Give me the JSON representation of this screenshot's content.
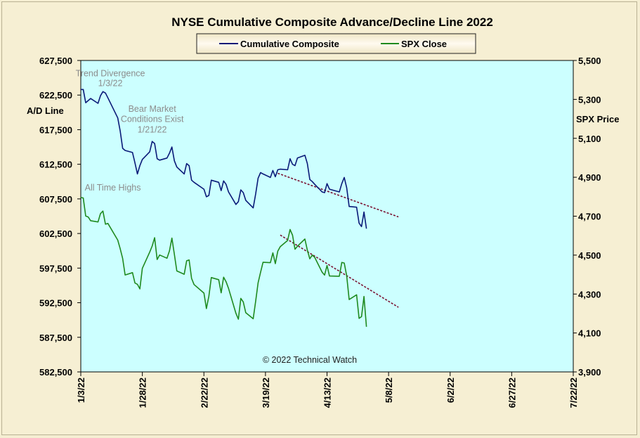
{
  "chart_data": {
    "type": "line",
    "title": "NYSE Cumulative  Composite Advance/Decline  Line  2022",
    "y_left_label": "A/D Line",
    "y_right_label": "SPX Price",
    "y_left_ticks": [
      "627,500",
      "622,500",
      "617,500",
      "612,500",
      "607,500",
      "602,500",
      "597,500",
      "592,500",
      "587,500",
      "582,500"
    ],
    "y_right_ticks": [
      "5,500",
      "5,300",
      "5,100",
      "4,900",
      "4,700",
      "4,500",
      "4,300",
      "4,100",
      "3,900"
    ],
    "x_ticks": [
      "1/3/22",
      "1/28/22",
      "2/22/22",
      "3/19/22",
      "4/13/22",
      "5/8/22",
      "6/2/22",
      "6/27/22",
      "7/22/22"
    ],
    "y_left_range": [
      582500,
      627500
    ],
    "y_right_range": [
      3900,
      5500
    ],
    "x_range_days": [
      0,
      200
    ],
    "grid": false,
    "legend_position": "top-center",
    "legend": [
      {
        "name": "Cumulative Composite",
        "color": "#0a1a78"
      },
      {
        "name": "SPX Close",
        "color": "#1f8a1f"
      }
    ],
    "series": [
      {
        "name": "Cumulative Composite",
        "axis": "left",
        "color": "#0a1a78",
        "points": [
          [
            "2022-01-03",
            623.3
          ],
          [
            "2022-01-04",
            623.3
          ],
          [
            "2022-01-05",
            621.4
          ],
          [
            "2022-01-06",
            621.7
          ],
          [
            "2022-01-07",
            622.0
          ],
          [
            "2022-01-10",
            621.3
          ],
          [
            "2022-01-11",
            622.4
          ],
          [
            "2022-01-12",
            623.0
          ],
          [
            "2022-01-13",
            622.8
          ],
          [
            "2022-01-14",
            622.1
          ],
          [
            "2022-01-18",
            619.2
          ],
          [
            "2022-01-19",
            617.3
          ],
          [
            "2022-01-20",
            614.8
          ],
          [
            "2022-01-21",
            614.5
          ],
          [
            "2022-01-24",
            614.2
          ],
          [
            "2022-01-25",
            612.7
          ],
          [
            "2022-01-26",
            611.1
          ],
          [
            "2022-01-27",
            612.3
          ],
          [
            "2022-01-28",
            613.2
          ],
          [
            "2022-01-31",
            614.3
          ],
          [
            "2022-02-01",
            615.8
          ],
          [
            "2022-02-02",
            615.5
          ],
          [
            "2022-02-03",
            613.3
          ],
          [
            "2022-02-04",
            613.1
          ],
          [
            "2022-02-07",
            613.4
          ],
          [
            "2022-02-08",
            614.1
          ],
          [
            "2022-02-09",
            615.0
          ],
          [
            "2022-02-10",
            613.0
          ],
          [
            "2022-02-11",
            612.1
          ],
          [
            "2022-02-14",
            611.1
          ],
          [
            "2022-02-15",
            612.6
          ],
          [
            "2022-02-16",
            612.3
          ],
          [
            "2022-02-17",
            610.2
          ],
          [
            "2022-02-18",
            609.9
          ],
          [
            "2022-02-22",
            608.9
          ],
          [
            "2022-02-23",
            607.8
          ],
          [
            "2022-02-24",
            608.0
          ],
          [
            "2022-02-25",
            610.2
          ],
          [
            "2022-02-28",
            609.9
          ],
          [
            "2022-03-01",
            608.7
          ],
          [
            "2022-03-02",
            610.1
          ],
          [
            "2022-03-03",
            609.6
          ],
          [
            "2022-03-04",
            608.5
          ],
          [
            "2022-03-07",
            606.7
          ],
          [
            "2022-03-08",
            607.1
          ],
          [
            "2022-03-09",
            608.8
          ],
          [
            "2022-03-10",
            608.4
          ],
          [
            "2022-03-11",
            607.3
          ],
          [
            "2022-03-14",
            606.2
          ],
          [
            "2022-03-15",
            608.2
          ],
          [
            "2022-03-16",
            610.5
          ],
          [
            "2022-03-17",
            611.3
          ],
          [
            "2022-03-18",
            611.1
          ],
          [
            "2022-03-21",
            610.6
          ],
          [
            "2022-03-22",
            611.6
          ],
          [
            "2022-03-23",
            610.7
          ],
          [
            "2022-03-24",
            611.7
          ],
          [
            "2022-03-25",
            611.8
          ],
          [
            "2022-03-28",
            611.7
          ],
          [
            "2022-03-29",
            613.3
          ],
          [
            "2022-03-30",
            612.5
          ],
          [
            "2022-03-31",
            612.3
          ],
          [
            "2022-04-01",
            613.4
          ],
          [
            "2022-04-04",
            613.8
          ],
          [
            "2022-04-05",
            612.6
          ],
          [
            "2022-04-06",
            610.3
          ],
          [
            "2022-04-07",
            610.0
          ],
          [
            "2022-04-08",
            609.6
          ],
          [
            "2022-04-11",
            608.5
          ],
          [
            "2022-04-12",
            608.4
          ],
          [
            "2022-04-13",
            609.7
          ],
          [
            "2022-04-14",
            608.9
          ],
          [
            "2022-04-18",
            608.5
          ],
          [
            "2022-04-19",
            609.7
          ],
          [
            "2022-04-20",
            610.6
          ],
          [
            "2022-04-21",
            609.1
          ],
          [
            "2022-04-22",
            606.4
          ],
          [
            "2022-04-25",
            606.3
          ],
          [
            "2022-04-26",
            604.0
          ],
          [
            "2022-04-27",
            603.5
          ],
          [
            "2022-04-28",
            605.6
          ],
          [
            "2022-04-29",
            603.2
          ]
        ]
      },
      {
        "name": "SPX Close",
        "axis": "right",
        "color": "#1f8a1f",
        "points": [
          [
            "2022-01-03",
            4796.6
          ],
          [
            "2022-01-04",
            4793.5
          ],
          [
            "2022-01-05",
            4700.6
          ],
          [
            "2022-01-06",
            4696.1
          ],
          [
            "2022-01-07",
            4677.0
          ],
          [
            "2022-01-10",
            4670.3
          ],
          [
            "2022-01-11",
            4713.1
          ],
          [
            "2022-01-12",
            4726.4
          ],
          [
            "2022-01-13",
            4659.0
          ],
          [
            "2022-01-14",
            4662.9
          ],
          [
            "2022-01-18",
            4577.1
          ],
          [
            "2022-01-19",
            4532.8
          ],
          [
            "2022-01-20",
            4482.7
          ],
          [
            "2022-01-21",
            4397.9
          ],
          [
            "2022-01-24",
            4410.1
          ],
          [
            "2022-01-25",
            4356.5
          ],
          [
            "2022-01-26",
            4349.9
          ],
          [
            "2022-01-27",
            4326.5
          ],
          [
            "2022-01-28",
            4431.9
          ],
          [
            "2022-01-31",
            4515.6
          ],
          [
            "2022-02-01",
            4546.5
          ],
          [
            "2022-02-02",
            4589.4
          ],
          [
            "2022-02-03",
            4477.4
          ],
          [
            "2022-02-04",
            4500.5
          ],
          [
            "2022-02-07",
            4483.9
          ],
          [
            "2022-02-08",
            4521.5
          ],
          [
            "2022-02-09",
            4587.2
          ],
          [
            "2022-02-10",
            4504.1
          ],
          [
            "2022-02-11",
            4418.6
          ],
          [
            "2022-02-14",
            4401.7
          ],
          [
            "2022-02-15",
            4471.1
          ],
          [
            "2022-02-16",
            4475.0
          ],
          [
            "2022-02-17",
            4380.3
          ],
          [
            "2022-02-18",
            4348.9
          ],
          [
            "2022-02-22",
            4304.8
          ],
          [
            "2022-02-23",
            4225.5
          ],
          [
            "2022-02-24",
            4288.7
          ],
          [
            "2022-02-25",
            4384.7
          ],
          [
            "2022-02-28",
            4373.9
          ],
          [
            "2022-03-01",
            4306.3
          ],
          [
            "2022-03-02",
            4386.5
          ],
          [
            "2022-03-03",
            4363.5
          ],
          [
            "2022-03-04",
            4328.9
          ],
          [
            "2022-03-07",
            4201.1
          ],
          [
            "2022-03-08",
            4170.7
          ],
          [
            "2022-03-09",
            4277.9
          ],
          [
            "2022-03-10",
            4259.5
          ],
          [
            "2022-03-11",
            4204.3
          ],
          [
            "2022-03-14",
            4173.1
          ],
          [
            "2022-03-15",
            4262.5
          ],
          [
            "2022-03-16",
            4357.9
          ],
          [
            "2022-03-17",
            4411.7
          ],
          [
            "2022-03-18",
            4463.1
          ],
          [
            "2022-03-21",
            4461.2
          ],
          [
            "2022-03-22",
            4511.6
          ],
          [
            "2022-03-23",
            4456.2
          ],
          [
            "2022-03-24",
            4520.2
          ],
          [
            "2022-03-25",
            4543.1
          ],
          [
            "2022-03-28",
            4575.5
          ],
          [
            "2022-03-29",
            4631.6
          ],
          [
            "2022-03-30",
            4602.5
          ],
          [
            "2022-03-31",
            4530.4
          ],
          [
            "2022-04-01",
            4545.9
          ],
          [
            "2022-04-04",
            4582.6
          ],
          [
            "2022-04-05",
            4525.1
          ],
          [
            "2022-04-06",
            4481.2
          ],
          [
            "2022-04-07",
            4500.2
          ],
          [
            "2022-04-08",
            4488.3
          ],
          [
            "2022-04-11",
            4412.5
          ],
          [
            "2022-04-12",
            4397.5
          ],
          [
            "2022-04-13",
            4446.6
          ],
          [
            "2022-04-14",
            4392.6
          ],
          [
            "2022-04-18",
            4391.7
          ],
          [
            "2022-04-19",
            4462.2
          ],
          [
            "2022-04-20",
            4459.5
          ],
          [
            "2022-04-21",
            4393.7
          ],
          [
            "2022-04-22",
            4271.8
          ],
          [
            "2022-04-25",
            4296.1
          ],
          [
            "2022-04-26",
            4175.2
          ],
          [
            "2022-04-27",
            4183.9
          ],
          [
            "2022-04-28",
            4287.5
          ],
          [
            "2022-04-29",
            4131.9
          ]
        ]
      }
    ],
    "trendlines": [
      {
        "axis": "left",
        "color": "#7a1030",
        "from": [
          "2022-03-24",
          611.2
        ],
        "to": [
          "2022-05-12",
          604.9
        ]
      },
      {
        "axis": "right",
        "color": "#7a1030",
        "from": [
          "2022-03-25",
          4603
        ],
        "to": [
          "2022-05-12",
          4232
        ]
      }
    ],
    "annotations": [
      {
        "text": "Trend  Divergence",
        "at": [
          "2022-01-15",
          625.2
        ]
      },
      {
        "text": "1/3/22",
        "at": [
          "2022-01-15",
          623.8
        ]
      },
      {
        "text": "Bear  Market",
        "at": [
          "2022-02-01",
          620.1
        ]
      },
      {
        "text": "Conditions  Exist",
        "at": [
          "2022-02-01",
          618.6
        ]
      },
      {
        "text": "1/21/22",
        "at": [
          "2022-02-01",
          617.1
        ]
      },
      {
        "text": "All Time  Highs",
        "at": [
          "2022-01-16",
          608.7
        ]
      },
      {
        "text": "© 2022  Technical  Watch",
        "at": [
          "2022-04-06",
          583.8
        ]
      }
    ]
  }
}
